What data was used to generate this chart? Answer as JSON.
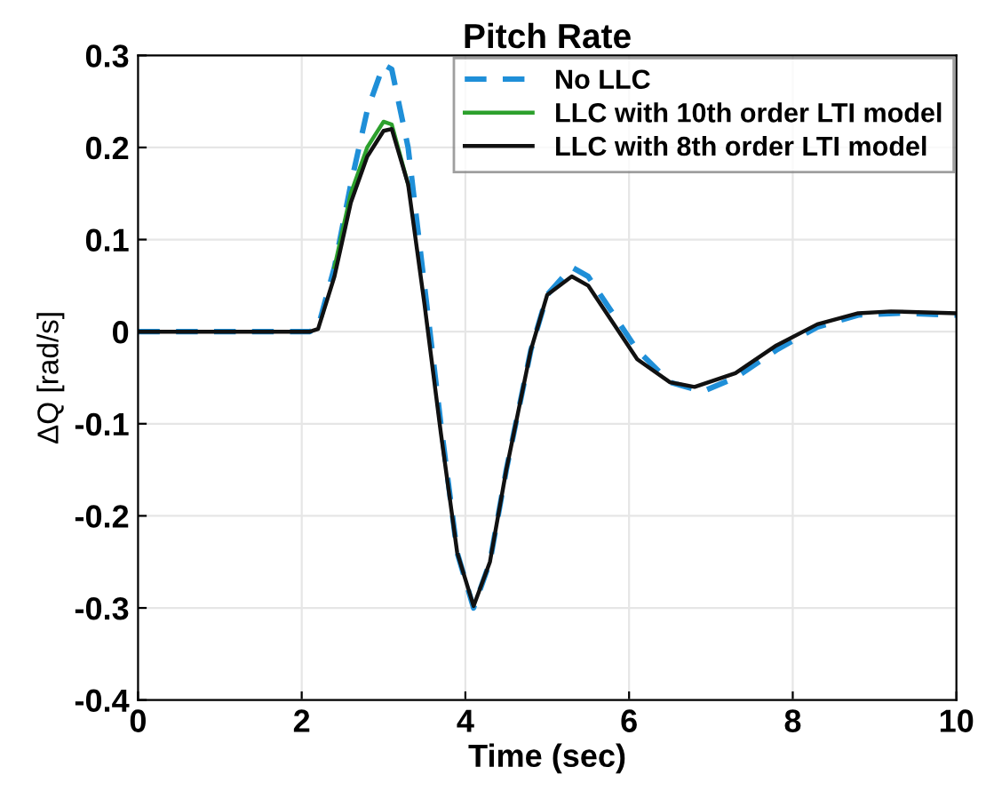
{
  "chart_data": {
    "type": "line",
    "title": "Pitch Rate",
    "xlabel": "Time (sec)",
    "ylabel": "ΔQ [rad/s]",
    "xlim": [
      0,
      10
    ],
    "xticks": [
      0,
      2,
      4,
      6,
      8,
      10
    ],
    "ylim": [
      -0.4,
      0.3
    ],
    "yticks": [
      -0.4,
      -0.3,
      -0.2,
      -0.1,
      0,
      0.1,
      0.2,
      0.3
    ],
    "grid": true,
    "legend": "top right",
    "series": [
      {
        "name": "No LLC",
        "color": "#1f8fd8",
        "line_style": "dashed",
        "x": [
          0,
          1,
          2.1,
          2.2,
          2.4,
          2.6,
          2.8,
          3.0,
          3.1,
          3.3,
          3.5,
          3.7,
          3.9,
          4.1,
          4.3,
          4.5,
          4.8,
          5.0,
          5.3,
          5.5,
          5.8,
          6.1,
          6.5,
          6.9,
          7.3,
          7.8,
          8.3,
          8.8,
          9.3,
          10
        ],
        "values": [
          0,
          0,
          0,
          0.005,
          0.07,
          0.16,
          0.24,
          0.29,
          0.285,
          0.2,
          0.05,
          -0.1,
          -0.24,
          -0.3,
          -0.25,
          -0.15,
          -0.02,
          0.04,
          0.07,
          0.06,
          0.02,
          -0.02,
          -0.055,
          -0.065,
          -0.05,
          -0.02,
          0.005,
          0.018,
          0.02,
          0.018
        ]
      },
      {
        "name": "LLC with 10th order LTI model",
        "color": "#2ca02c",
        "line_style": "solid",
        "x": [
          2.4,
          2.6,
          2.8,
          3.0,
          3.1,
          3.3
        ],
        "values": [
          0.07,
          0.15,
          0.2,
          0.228,
          0.225,
          0.16
        ]
      },
      {
        "name": "LLC with 8th order LTI model",
        "color": "#111111",
        "line_style": "solid",
        "x": [
          0,
          1,
          2.1,
          2.2,
          2.4,
          2.6,
          2.8,
          3.0,
          3.1,
          3.3,
          3.5,
          3.7,
          3.9,
          4.1,
          4.3,
          4.5,
          4.8,
          5.0,
          5.3,
          5.5,
          5.8,
          6.1,
          6.5,
          6.8,
          7.3,
          7.8,
          8.3,
          8.8,
          9.2,
          10
        ],
        "values": [
          0,
          0,
          0,
          0.003,
          0.06,
          0.14,
          0.19,
          0.218,
          0.22,
          0.16,
          0.03,
          -0.11,
          -0.24,
          -0.298,
          -0.25,
          -0.15,
          -0.02,
          0.04,
          0.06,
          0.05,
          0.01,
          -0.03,
          -0.055,
          -0.06,
          -0.045,
          -0.015,
          0.008,
          0.02,
          0.022,
          0.02
        ]
      }
    ]
  }
}
